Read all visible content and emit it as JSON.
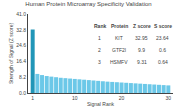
{
  "chart_data": {
    "type": "bar",
    "title": "Human Protein Microarray Specificity Validation",
    "x_label": "Signal Rank",
    "y_label": "Strength of Signal (Z score)",
    "x": [
      1,
      2,
      3,
      4,
      5,
      6,
      7,
      8,
      9,
      10,
      11,
      12,
      13,
      14,
      15,
      16,
      17,
      18,
      19,
      20,
      21,
      22,
      23,
      24,
      25,
      26,
      27,
      28,
      29,
      30
    ],
    "values": [
      32.95,
      9.9,
      9.31,
      8.8,
      8.5,
      8.2,
      7.9,
      7.7,
      7.5,
      7.3,
      7.1,
      6.9,
      6.7,
      6.5,
      6.3,
      6.1,
      5.9,
      5.75,
      5.6,
      5.45,
      5.3,
      5.15,
      5.0,
      4.85,
      4.7,
      4.55,
      4.4,
      4.25,
      4.1,
      3.95
    ],
    "colors": [
      "#2196b8",
      "#6cc8e8",
      "#6cc8e8",
      "#6cc8e8",
      "#6cc8e8",
      "#6cc8e8",
      "#6cc8e8",
      "#6cc8e8",
      "#6cc8e8",
      "#6cc8e8",
      "#6cc8e8",
      "#6cc8e8",
      "#6cc8e8",
      "#6cc8e8",
      "#6cc8e8",
      "#6cc8e8",
      "#6cc8e8",
      "#6cc8e8",
      "#6cc8e8",
      "#6cc8e8",
      "#6cc8e8",
      "#6cc8e8",
      "#6cc8e8",
      "#6cc8e8",
      "#6cc8e8",
      "#6cc8e8",
      "#6cc8e8",
      "#6cc8e8",
      "#6cc8e8",
      "#6cc8e8"
    ],
    "xlim": [
      0,
      31
    ],
    "xticks": [
      1,
      10,
      20,
      30
    ],
    "ylim": [
      0,
      41
    ],
    "yticks": [
      {
        "value": 0,
        "label": "0.0"
      },
      8.2,
      16.4,
      24.6,
      32.8,
      {
        "value": 41,
        "label": "41.0"
      }
    ],
    "grid": false,
    "table": {
      "headers": [
        "Rank",
        "Protein",
        "Z score",
        "S score"
      ],
      "rows": [
        [
          "1",
          "KIT",
          "32.95",
          "23.64"
        ],
        [
          "2",
          "GTF2I",
          "9.9",
          "0.6"
        ],
        [
          "3",
          "HSMFV",
          "9.31",
          "0.64"
        ]
      ]
    }
  }
}
